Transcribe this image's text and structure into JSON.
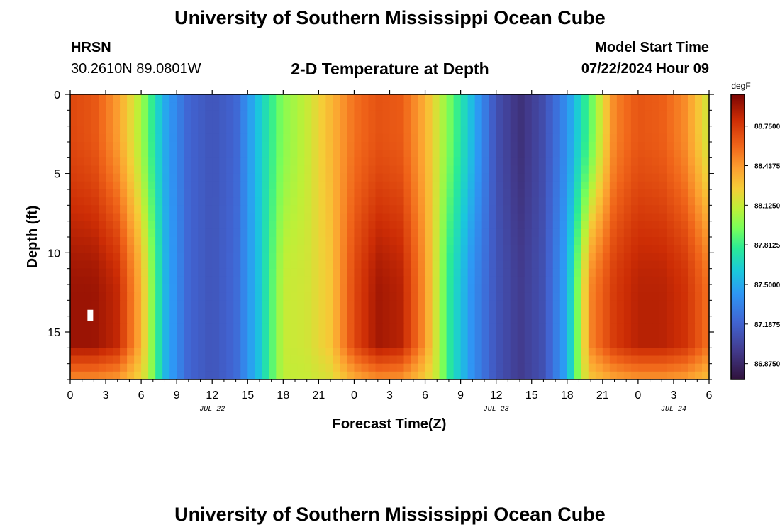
{
  "header": {
    "title": "University of Southern Mississippi Ocean Cube",
    "station": "HRSN",
    "coords": "30.2610N  89.0801W",
    "subtitle": "2-D Temperature at Depth",
    "model_start_label": "Model Start Time",
    "model_start_value": "07/22/2024 Hour 09"
  },
  "footer": {
    "title": "University of Southern Mississippi Ocean Cube"
  },
  "chart_data": {
    "type": "heatmap",
    "title": "2-D Temperature at Depth",
    "xlabel": "Forecast Time(Z)",
    "ylabel": "Depth (ft)",
    "x_unit": "hours since JUL 22 00Z",
    "xlim": [
      0,
      54
    ],
    "ylim": [
      0,
      18
    ],
    "x_ticks": [
      0,
      3,
      6,
      9,
      12,
      15,
      18,
      21,
      24,
      27,
      30,
      33,
      36,
      39,
      42,
      45,
      48,
      51,
      54
    ],
    "x_tick_labels": [
      "0",
      "3",
      "6",
      "9",
      "12",
      "15",
      "18",
      "21",
      "0",
      "3",
      "6",
      "9",
      "12",
      "15",
      "18",
      "21",
      "0",
      "3",
      "6"
    ],
    "y_ticks": [
      0,
      5,
      10,
      15
    ],
    "y_tick_labels": [
      "0",
      "5",
      "10",
      "15"
    ],
    "date_labels": [
      {
        "x": 12,
        "text": "JUL 22"
      },
      {
        "x": 36,
        "text": "JUL 23"
      },
      {
        "x": 51,
        "text": "JUL 24"
      }
    ],
    "colorbar": {
      "unit": "degF",
      "range": [
        86.75,
        89.0
      ],
      "tick_values": [
        88.75,
        88.4375,
        88.125,
        87.8125,
        87.5,
        87.1875,
        86.875
      ],
      "tick_labels": [
        "88.75000",
        "88.43750",
        "88.12500",
        "87.81250",
        "87.50000",
        "87.18750",
        "86.87500"
      ]
    },
    "field_description": "Diurnal temperature cycle: warm (88.6-88.95 degF) around hours 0-5, 23-30, 46-54; cool (87.0-87.3 degF) around hours 10-14 and 33-40; warm cores deepen near 12-15 ft.",
    "keyframes": {
      "hours": [
        0,
        2,
        4,
        6,
        8,
        10,
        12,
        14,
        16,
        18,
        20,
        22,
        24,
        26,
        28,
        30,
        32,
        34,
        36,
        38,
        40,
        42,
        44,
        46,
        48,
        50,
        52,
        54
      ],
      "surface_degF": [
        88.7,
        88.65,
        88.42,
        88.05,
        87.5,
        87.2,
        87.12,
        87.2,
        87.62,
        87.98,
        88.12,
        88.33,
        88.56,
        88.66,
        88.63,
        88.36,
        87.95,
        87.55,
        87.1,
        86.92,
        87.08,
        87.4,
        87.9,
        88.5,
        88.65,
        88.62,
        88.47,
        88.13
      ],
      "deep_degF": [
        88.92,
        88.92,
        88.82,
        88.35,
        87.55,
        87.2,
        87.12,
        87.22,
        87.6,
        88.12,
        88.15,
        88.28,
        88.7,
        88.9,
        88.85,
        88.45,
        87.78,
        87.4,
        87.12,
        86.98,
        87.1,
        87.5,
        88.5,
        88.75,
        88.85,
        88.85,
        88.78,
        88.55
      ]
    },
    "marker": {
      "type": "white-rectangle",
      "x": 1.7,
      "depth_from": 13.6,
      "depth_to": 14.3
    }
  }
}
